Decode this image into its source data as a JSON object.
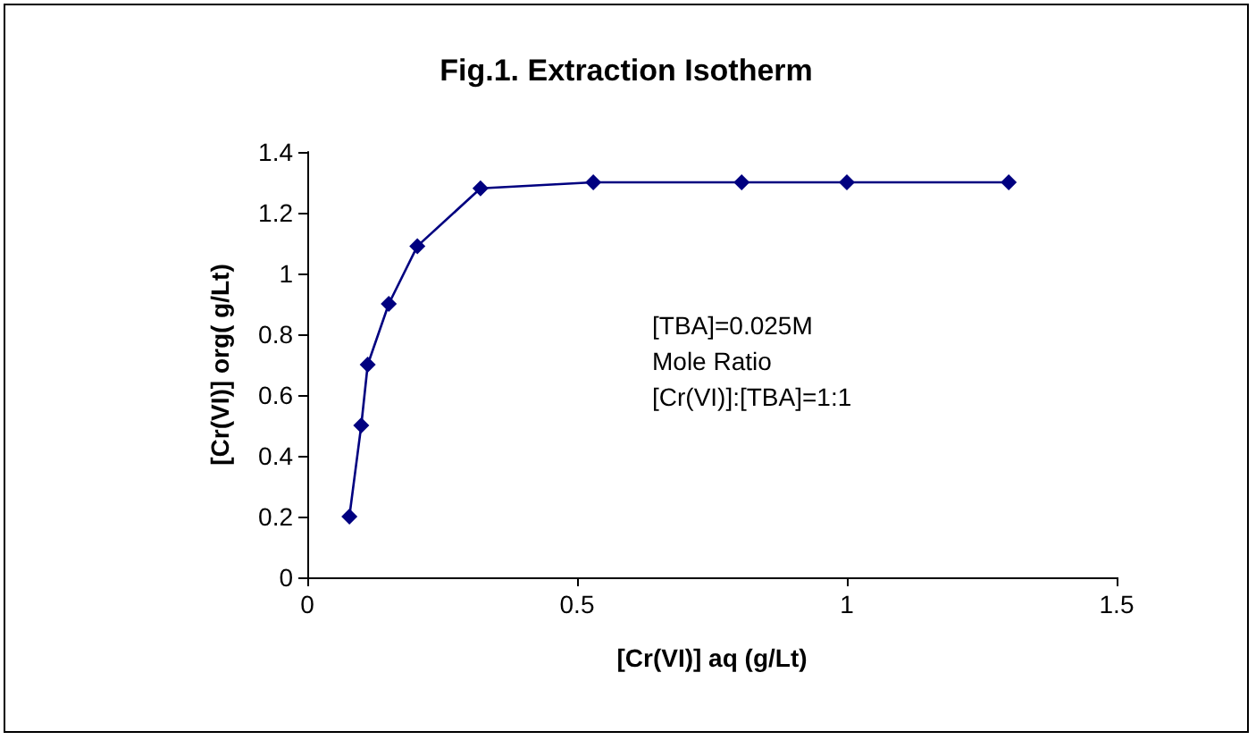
{
  "chart_data": {
    "type": "line",
    "title": "Fig.1. Extraction Isotherm",
    "xlabel": "[Cr(VI)] aq (g/Lt)",
    "ylabel": "[Cr(VI)] org( g/Lt)",
    "annotations": [
      "[TBA]=0.025M",
      "Mole Ratio",
      "[Cr(VI)]:[TBA]=1:1"
    ],
    "x": [
      0.078,
      0.1,
      0.112,
      0.151,
      0.204,
      0.321,
      0.53,
      0.805,
      1.0,
      1.3
    ],
    "series": [
      {
        "color": "#000080",
        "values": [
          0.2,
          0.5,
          0.7,
          0.9,
          1.09,
          1.28,
          1.3,
          1.3,
          1.3,
          1.3
        ]
      }
    ],
    "xlim": [
      0,
      1.5
    ],
    "xticks": [
      0,
      0.5,
      1,
      1.5
    ],
    "ylim": [
      0,
      1.4
    ],
    "yticks": [
      0,
      0.2,
      0.4,
      0.6,
      0.8,
      1,
      1.2,
      1.4
    ],
    "grid": false,
    "marker": "diamond",
    "line_style": "solid"
  }
}
